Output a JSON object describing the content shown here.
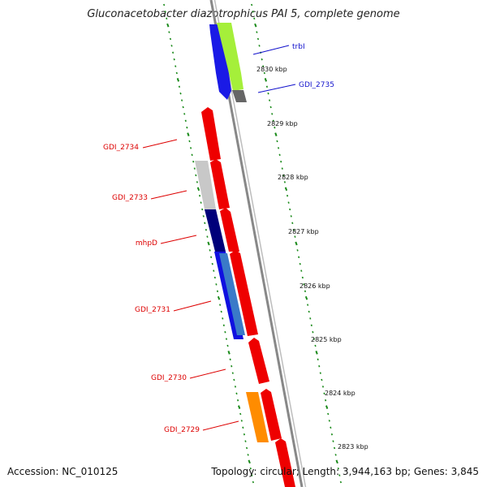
{
  "title": "Gluconacetobacter diazotrophicus PAI 5, complete genome",
  "footer": {
    "accession": "Accession: NC_010125",
    "summary": "Topology: circular; Length: 3,944,163 bp; Genes: 3,845"
  },
  "colors": {
    "backbone": "#888888",
    "tick": "#1a8a1a",
    "forward_label": "#1111cc",
    "reverse_label": "#dd0000"
  },
  "scale_labels": [
    "2830 kbp",
    "2829 kbp",
    "2828 kbp",
    "2827 kbp",
    "2826 kbp",
    "2825 kbp",
    "2824 kbp",
    "2823 kbp"
  ],
  "gene_labels": [
    {
      "text": "trbI",
      "color": "#1111cc"
    },
    {
      "text": "GDI_2735",
      "color": "#1111cc"
    },
    {
      "text": "GDI_2734",
      "color": "#dd0000"
    },
    {
      "text": "GDI_2733",
      "color": "#dd0000"
    },
    {
      "text": "mhpD",
      "color": "#dd0000"
    },
    {
      "text": "GDI_2731",
      "color": "#dd0000"
    },
    {
      "text": "GDI_2730",
      "color": "#dd0000"
    },
    {
      "text": "GDI_2729",
      "color": "#dd0000"
    }
  ],
  "features": [
    {
      "name": "blue-forward-gene",
      "color": "#1a1ae6"
    },
    {
      "name": "lightgreen-forward-gene",
      "color": "#a5ef3a"
    },
    {
      "name": "gray-forward-gene",
      "color": "#666666"
    },
    {
      "name": "red-gene-2734",
      "color": "#ee0000"
    },
    {
      "name": "lightgray-gene-2733",
      "color": "#c8c8c8"
    },
    {
      "name": "red-gene-2733",
      "color": "#ee0000"
    },
    {
      "name": "navy-gene-mhpD",
      "color": "#00007a"
    },
    {
      "name": "red-gene-mhpD",
      "color": "#ee0000"
    },
    {
      "name": "blue-gene-2731",
      "color": "#1010e0"
    },
    {
      "name": "steelblue-gene-2731",
      "color": "#3a7ac8"
    },
    {
      "name": "red-gene-2731",
      "color": "#ee0000"
    },
    {
      "name": "red-gene-2730",
      "color": "#ee0000"
    },
    {
      "name": "orange-gene-2729",
      "color": "#ff8c00"
    },
    {
      "name": "red-gene-2729",
      "color": "#ee0000"
    },
    {
      "name": "red-gene-bottom",
      "color": "#ee0000"
    }
  ]
}
